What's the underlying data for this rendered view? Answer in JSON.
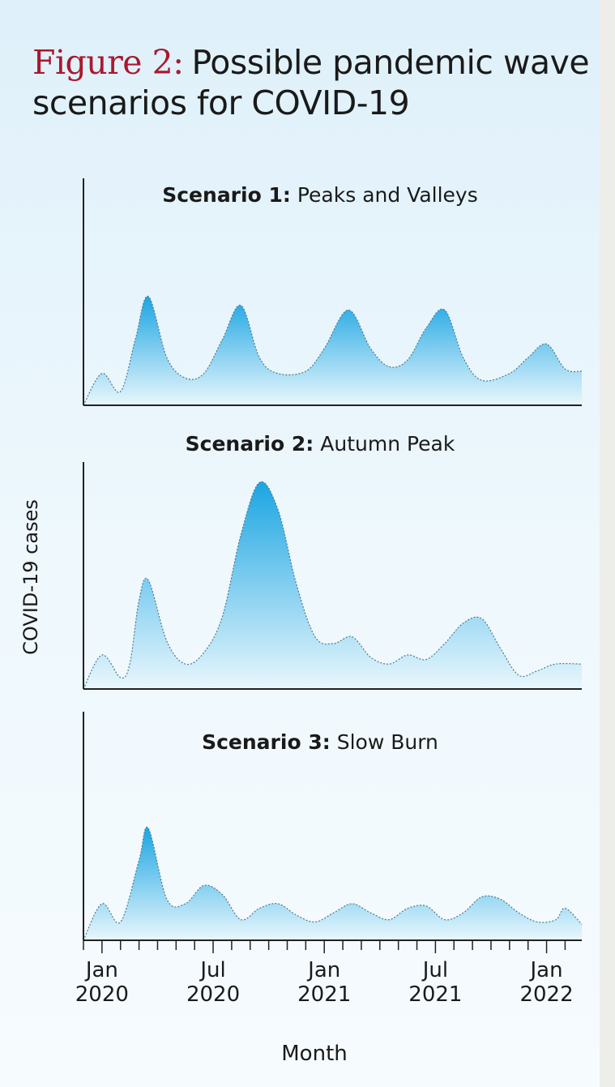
{
  "title": {
    "prefix": "Figure 2:",
    "text": "Possible pandemic wave scenarios for COVID-19"
  },
  "ylabel": "COVID-19 cases",
  "chart_data": [
    {
      "type": "area",
      "label": "Scenario 1:",
      "title": "Peaks and Valleys",
      "color": "#1ba5e2",
      "xlim": [
        -1,
        25.9
      ],
      "ylim": [
        0,
        100
      ],
      "x": [
        -1,
        0,
        1,
        1.8,
        2.5,
        3.5,
        4.5,
        5.5,
        6.5,
        7.5,
        8.5,
        9.5,
        11,
        12,
        13.3,
        14.5,
        15.5,
        16.5,
        17.5,
        18.5,
        19.5,
        20.5,
        22,
        23,
        24,
        25,
        25.9
      ],
      "values": [
        0,
        14,
        6,
        29,
        48,
        21,
        12,
        14,
        29,
        44,
        21,
        14,
        15,
        25,
        42,
        25,
        17,
        20,
        34,
        42,
        21,
        11,
        14,
        21,
        27,
        16,
        15
      ]
    },
    {
      "type": "area",
      "label": "Scenario 2:",
      "title": "Autumn Peak",
      "color": "#1ba5e2",
      "xlim": [
        -1,
        25.9
      ],
      "ylim": [
        0,
        100
      ],
      "x": [
        -1,
        0,
        1,
        1.5,
        2,
        2.5,
        3.5,
        4.5,
        5.5,
        6.5,
        7.5,
        8.5,
        9.5,
        10.5,
        11.5,
        12.5,
        13.5,
        14.5,
        15.5,
        16.5,
        17.5,
        18.5,
        19.5,
        20.5,
        21.5,
        22.5,
        23.5,
        24.5,
        25.9
      ],
      "values": [
        0,
        15,
        5,
        11,
        39,
        48,
        21,
        11,
        16,
        32,
        68,
        91,
        79,
        46,
        23,
        20,
        23,
        14,
        11,
        15,
        13,
        20,
        29,
        31,
        18,
        6,
        8,
        11,
        11
      ]
    },
    {
      "type": "area",
      "label": "Scenario 3:",
      "title": "Slow Burn",
      "color": "#1ba5e2",
      "xlim": [
        -1,
        25.9
      ],
      "ylim": [
        0,
        100
      ],
      "x": [
        -1,
        0,
        1,
        2,
        2.5,
        3.5,
        4.5,
        5.5,
        6.5,
        7.5,
        8.5,
        9.5,
        10.5,
        11.5,
        12.5,
        13.5,
        14.5,
        15.5,
        16.5,
        17.5,
        18.5,
        19.5,
        20.5,
        21.5,
        22.5,
        23.5,
        24.5,
        25,
        25.9
      ],
      "values": [
        0,
        16,
        8,
        35,
        49,
        18,
        16,
        24,
        20,
        9,
        14,
        16,
        11,
        8,
        12,
        16,
        12,
        9,
        14,
        15,
        9,
        12,
        19,
        18,
        12,
        8,
        9,
        14,
        7
      ],
      "xticks": [
        {
          "value": 0,
          "label": "Jan 2020"
        },
        {
          "value": 6,
          "label": "Jul 2020"
        },
        {
          "value": 12,
          "label": "Jan 2021"
        },
        {
          "value": 18,
          "label": "Jul 2021"
        },
        {
          "value": 24,
          "label": "Jan 2022"
        }
      ],
      "xminorticks": [
        -1,
        1,
        2,
        3,
        4,
        5,
        7,
        8,
        9,
        10,
        11,
        13,
        14,
        15,
        16,
        17,
        19,
        20,
        21,
        22,
        23,
        25
      ],
      "xlabel": "Month"
    }
  ]
}
